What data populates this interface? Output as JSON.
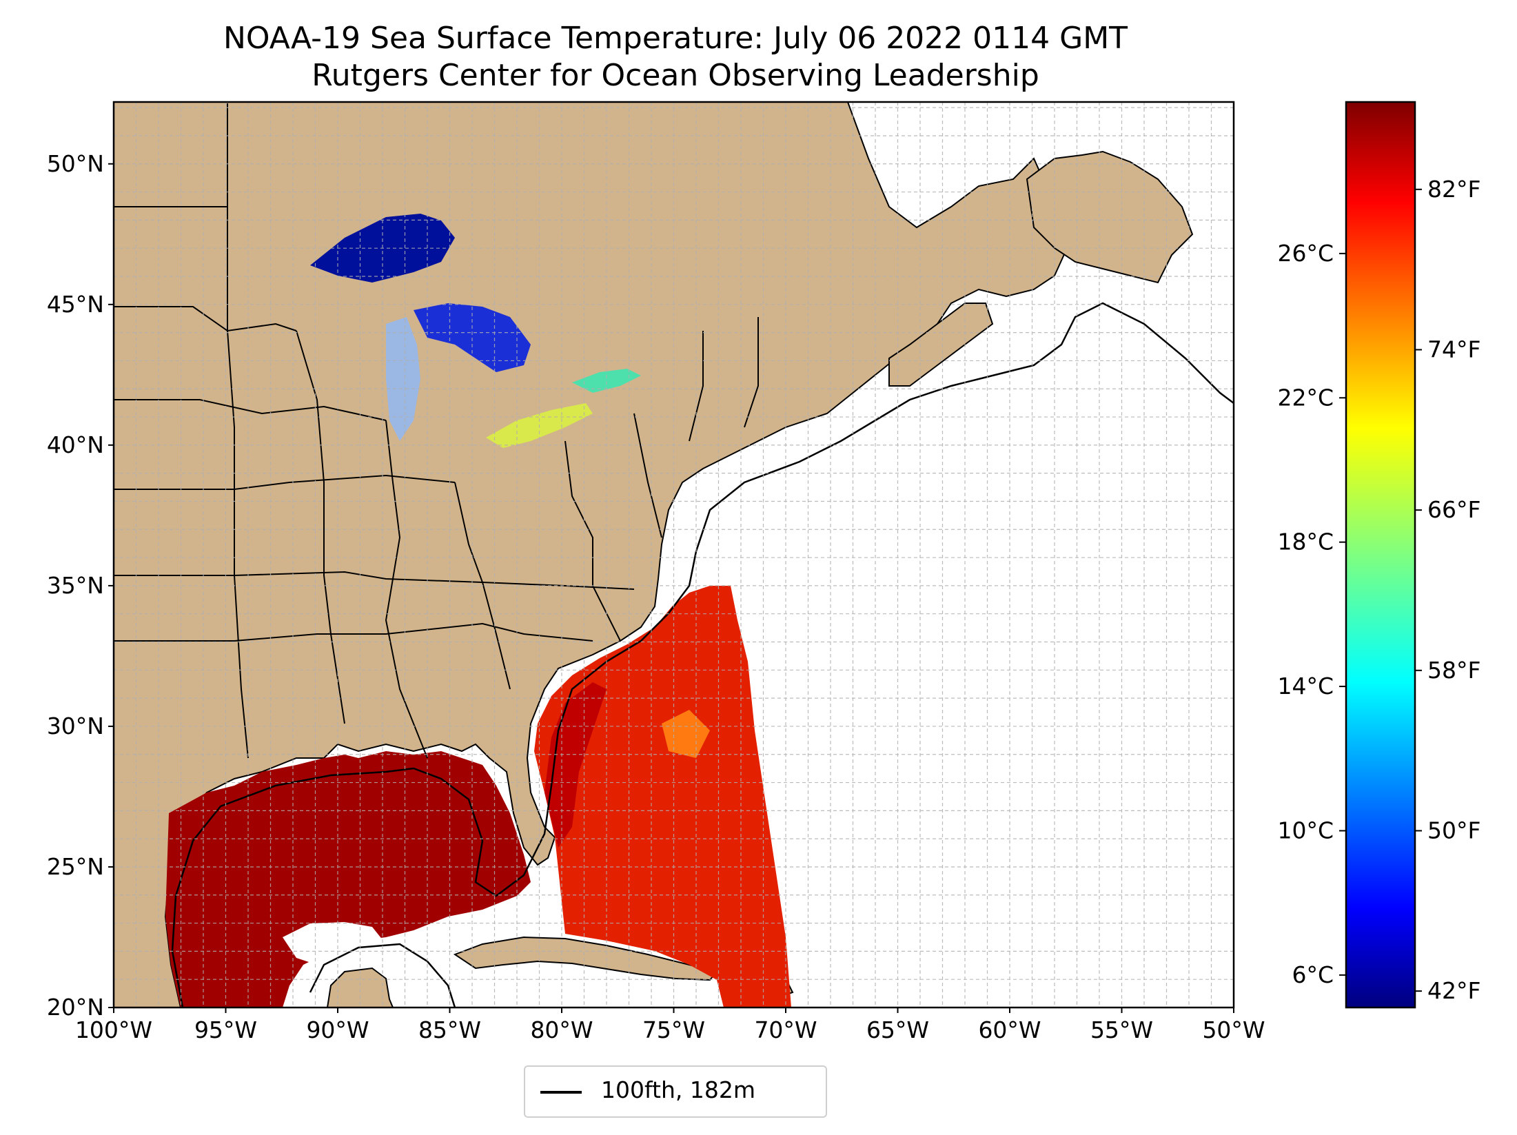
{
  "title": "NOAA-19 Sea Surface Temperature: July 06 2022 0114 GMT",
  "subtitle": "Rutgers Center for Ocean Observing Leadership",
  "map": {
    "extent": {
      "lon": [
        -100,
        -50
      ],
      "lat": [
        20,
        52.2
      ]
    },
    "gridlines": true,
    "land_color": "#d2b48c",
    "lakes_color": "#9bb7e3",
    "ocean_color": "#ffffff",
    "lat_ticks": [
      "50°N",
      "45°N",
      "40°N",
      "35°N",
      "30°N",
      "25°N",
      "20°N"
    ],
    "lon_ticks": [
      "100°W",
      "95°W",
      "90°W",
      "85°W",
      "80°W",
      "75°W",
      "70°W",
      "65°W",
      "60°W",
      "55°W",
      "50°W"
    ],
    "legend_label": "100fth, 182m"
  },
  "colorbar": {
    "colormap": "jet",
    "celsius_ticks": [
      "26°C",
      "22°C",
      "18°C",
      "14°C",
      "10°C",
      "6°C"
    ],
    "fahrenheit_ticks": [
      "82°F",
      "74°F",
      "66°F",
      "58°F",
      "50°F",
      "42°F"
    ]
  }
}
